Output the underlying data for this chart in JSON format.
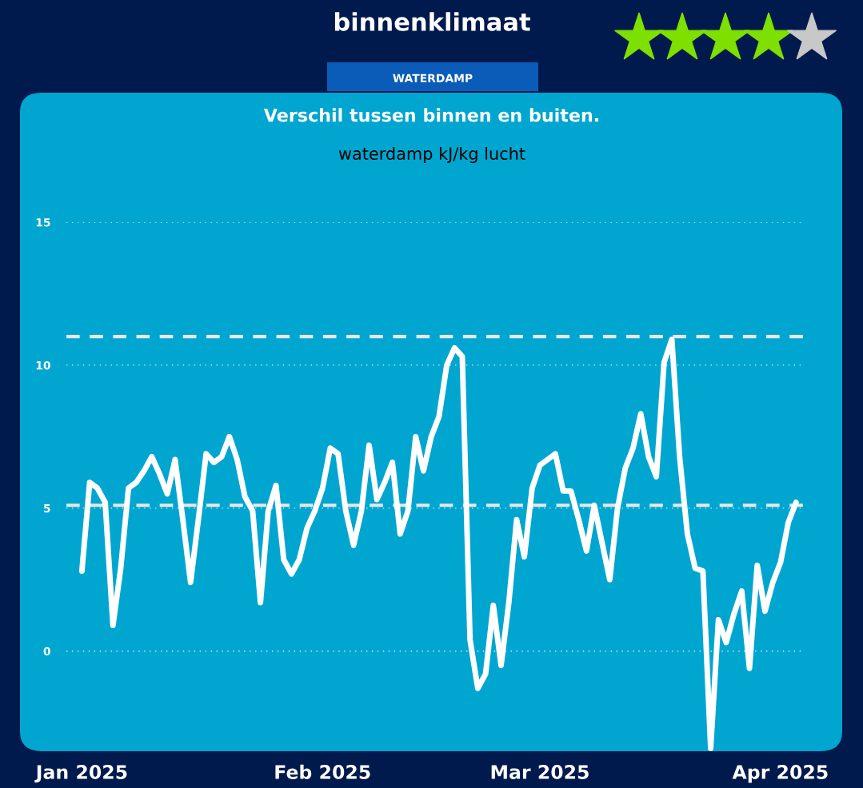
{
  "chart_data": {
    "type": "line",
    "title": "binnenklimaat",
    "subtitle": "Verschil tussen binnen en buiten.",
    "ylabel": "waterdamp kJ/kg lucht",
    "annotations": [
      "WATERDAMP"
    ],
    "x": [
      "2025-01-01",
      "2025-01-02",
      "2025-01-03",
      "2025-01-04",
      "2025-01-05",
      "2025-01-06",
      "2025-01-07",
      "2025-01-08",
      "2025-01-09",
      "2025-01-10",
      "2025-01-11",
      "2025-01-12",
      "2025-01-13",
      "2025-01-14",
      "2025-01-15",
      "2025-01-16",
      "2025-01-17",
      "2025-01-18",
      "2025-01-19",
      "2025-01-20",
      "2025-01-21",
      "2025-01-22",
      "2025-01-23",
      "2025-01-24",
      "2025-01-25",
      "2025-01-26",
      "2025-01-27",
      "2025-01-28",
      "2025-01-29",
      "2025-01-30",
      "2025-01-31",
      "2025-02-01",
      "2025-02-02",
      "2025-02-03",
      "2025-02-04",
      "2025-02-05",
      "2025-02-06",
      "2025-02-07",
      "2025-02-08",
      "2025-02-09",
      "2025-02-10",
      "2025-02-11",
      "2025-02-12",
      "2025-02-13",
      "2025-02-14",
      "2025-02-15",
      "2025-02-16",
      "2025-02-17",
      "2025-02-18",
      "2025-02-19",
      "2025-02-20",
      "2025-02-21",
      "2025-02-22",
      "2025-02-23",
      "2025-02-24",
      "2025-02-25",
      "2025-02-26",
      "2025-02-27",
      "2025-02-28",
      "2025-03-01",
      "2025-03-02",
      "2025-03-03",
      "2025-03-04",
      "2025-03-05",
      "2025-03-06",
      "2025-03-07",
      "2025-03-08",
      "2025-03-09",
      "2025-03-10",
      "2025-03-11",
      "2025-03-12",
      "2025-03-13",
      "2025-03-14",
      "2025-03-15",
      "2025-03-16",
      "2025-03-17",
      "2025-03-18",
      "2025-03-19",
      "2025-03-20",
      "2025-03-21",
      "2025-03-22",
      "2025-03-23",
      "2025-03-24",
      "2025-03-25",
      "2025-03-26",
      "2025-03-27",
      "2025-03-28",
      "2025-03-29",
      "2025-03-30",
      "2025-03-31",
      "2025-04-01",
      "2025-04-02",
      "2025-04-03"
    ],
    "series": [
      {
        "color": "#ffffff",
        "values": [
          2.8,
          5.9,
          5.7,
          5.2,
          0.9,
          2.9,
          5.7,
          5.9,
          6.3,
          6.8,
          6.2,
          5.5,
          6.7,
          4.6,
          2.4,
          4.6,
          6.9,
          6.6,
          6.8,
          7.5,
          6.7,
          5.4,
          4.9,
          1.7,
          4.9,
          5.8,
          3.2,
          2.7,
          3.2,
          4.3,
          4.9,
          5.7,
          7.1,
          6.9,
          4.9,
          3.7,
          4.9,
          7.2,
          5.3,
          5.9,
          6.6,
          4.1,
          4.9,
          7.5,
          6.3,
          7.5,
          8.2,
          10.0,
          10.6,
          10.3,
          0.4,
          -1.3,
          -0.8,
          1.6,
          -0.5,
          1.7,
          4.6,
          3.3,
          5.7,
          6.5,
          6.7,
          6.9,
          5.6,
          5.6,
          4.6,
          3.5,
          5.1,
          3.8,
          2.5,
          5.0,
          6.4,
          7.1,
          8.3,
          6.8,
          6.1,
          10.1,
          10.9,
          6.8,
          4.1,
          2.9,
          2.8,
          -3.4,
          1.1,
          0.3,
          1.3,
          2.1,
          -0.6,
          3.0,
          1.4,
          2.4,
          3.1,
          4.5,
          5.2
        ]
      }
    ],
    "xlim": [
      "2024-12-30",
      "2025-04-04"
    ],
    "xticks": [
      {
        "value": "2025-01-01",
        "label": "Jan 2025"
      },
      {
        "value": "2025-02-01",
        "label": "Feb 2025"
      },
      {
        "value": "2025-03-01",
        "label": "Mar 2025"
      },
      {
        "value": "2025-04-01",
        "label": "Apr 2025"
      }
    ],
    "ylim": [
      -3.5,
      15
    ],
    "yticks": [
      0,
      5,
      10,
      15
    ],
    "ref_lines": [
      {
        "axis": "y",
        "value": 11,
        "color": "#e8e8e8",
        "line_style": "dashed"
      },
      {
        "axis": "y",
        "value": 5.1,
        "color": "#e8e8e8",
        "line_style": "dashed"
      }
    ],
    "grid": "y",
    "legend": false,
    "marker": "none",
    "line_style": "solid"
  }
}
